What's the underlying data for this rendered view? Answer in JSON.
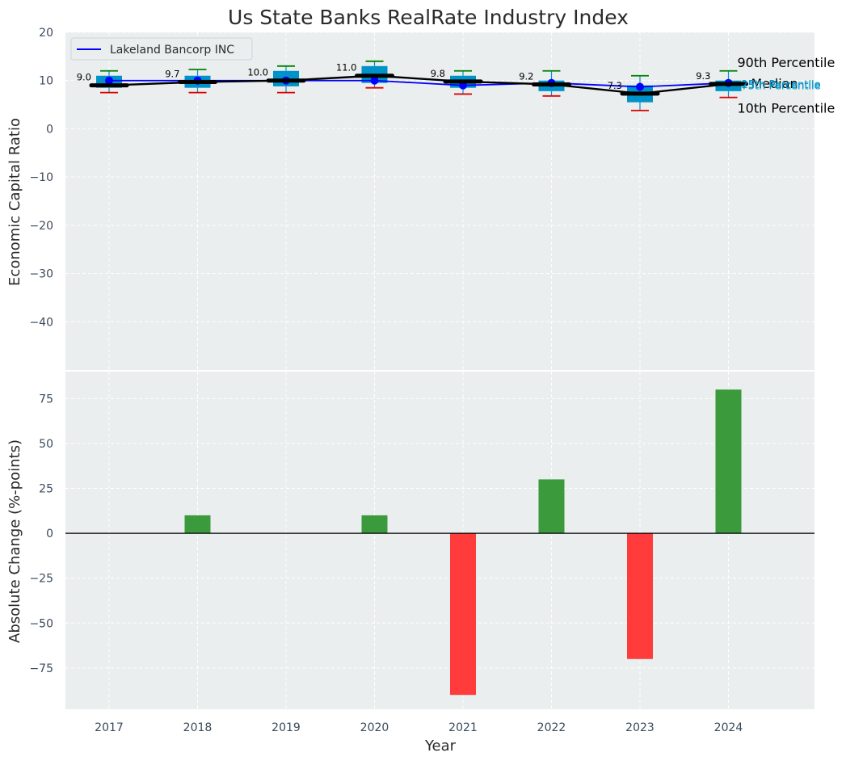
{
  "colors": {
    "panel_bg": "#eaeeee",
    "grid": "#ffffff",
    "box_fill": "#0093c9",
    "whisker_hi": "#008000",
    "whisker_lo": "#e00000",
    "company_line": "#0000ff",
    "median_line": "#000000",
    "bar_pos": "#3a9a3c",
    "bar_neg": "#ff3b3b",
    "q_label": "#0093c9"
  },
  "chart_data": [
    {
      "type": "box",
      "title": "Us State Banks RealRate Industry Index",
      "ylabel": "Economic Capital Ratio",
      "categories": [
        "2017",
        "2018",
        "2019",
        "2020",
        "2021",
        "2022",
        "2023",
        "2024"
      ],
      "ylim": [
        -50,
        20
      ],
      "yticks": [
        20,
        10,
        0,
        -10,
        -20,
        -30,
        -40
      ],
      "p10": [
        7.5,
        7.5,
        7.5,
        8.5,
        7.2,
        6.8,
        3.8,
        6.5
      ],
      "q25": [
        8.5,
        8.5,
        8.8,
        9.5,
        8.5,
        7.8,
        5.5,
        7.8
      ],
      "median": [
        9.0,
        9.7,
        10.0,
        11.0,
        9.8,
        9.2,
        7.3,
        9.3
      ],
      "q75": [
        11.0,
        11.0,
        12.0,
        13.0,
        11.0,
        10.0,
        9.0,
        10.0
      ],
      "p90": [
        12.0,
        12.3,
        13.0,
        14.0,
        12.0,
        12.0,
        11.0,
        12.0
      ],
      "median_labels": [
        "9.0",
        "9.7",
        "10.0",
        "11.0",
        "9.8",
        "9.2",
        "7.3",
        "9.3"
      ],
      "company": {
        "name": "Lakeland Bancorp INC",
        "values": [
          10.0,
          10.0,
          10.0,
          10.0,
          9.0,
          9.5,
          8.7,
          9.5
        ]
      },
      "percentile_labels": {
        "p90": "90th Percentile",
        "median": "Median",
        "p10": "10th Percentile",
        "q75": "75th Percentile",
        "q25": "25th Percentile"
      },
      "legend_position": "upper-left"
    },
    {
      "type": "bar",
      "ylabel": "Absolute Change (%-points)",
      "xlabel": "Year",
      "categories": [
        "2017",
        "2018",
        "2019",
        "2020",
        "2021",
        "2022",
        "2023",
        "2024"
      ],
      "values": [
        0,
        10,
        0,
        10,
        -90,
        30,
        -70,
        80
      ],
      "ylim": [
        -98,
        90
      ],
      "yticks": [
        75,
        50,
        25,
        0,
        -25,
        -50,
        -75
      ]
    }
  ]
}
